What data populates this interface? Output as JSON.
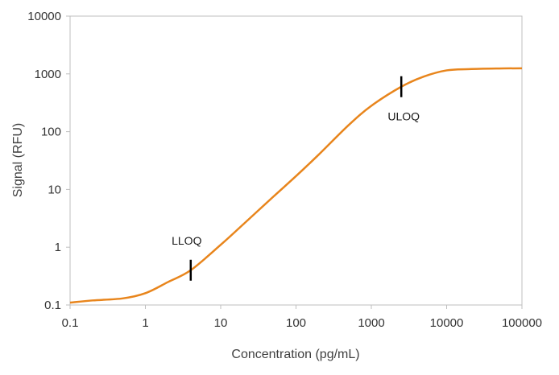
{
  "chart_data": {
    "type": "line",
    "title": "",
    "xlabel": "Concentration (pg/mL)",
    "ylabel": "Signal (RFU)",
    "x_scale": "log",
    "y_scale": "log",
    "xlim": [
      0.1,
      100000
    ],
    "ylim": [
      0.1,
      10000
    ],
    "x_ticks": [
      0.1,
      1,
      10,
      100,
      1000,
      10000,
      100000
    ],
    "x_tick_labels": [
      "0.1",
      "1",
      "10",
      "100",
      "1000",
      "10000",
      "100000"
    ],
    "y_ticks": [
      0.1,
      1,
      10,
      100,
      1000,
      10000
    ],
    "y_tick_labels": [
      "0.1",
      "1",
      "10",
      "100",
      "1000",
      "10000"
    ],
    "grid": false,
    "legend": "none",
    "series": [
      {
        "color": "#E8851C",
        "x": [
          0.1,
          0.2,
          0.5,
          1,
          2,
          4,
          10,
          20,
          50,
          100,
          200,
          500,
          1000,
          2500,
          5000,
          10000,
          20000,
          50000,
          100000
        ],
        "y": [
          0.11,
          0.12,
          0.13,
          0.16,
          0.25,
          0.4,
          1.1,
          2.5,
          7.5,
          17,
          40,
          130,
          280,
          600,
          900,
          1150,
          1210,
          1240,
          1250
        ]
      }
    ],
    "annotations": [
      {
        "text": "LLOQ",
        "x": 4,
        "y": 0.4
      },
      {
        "text": "ULOQ",
        "x": 2500,
        "y": 600
      }
    ]
  }
}
